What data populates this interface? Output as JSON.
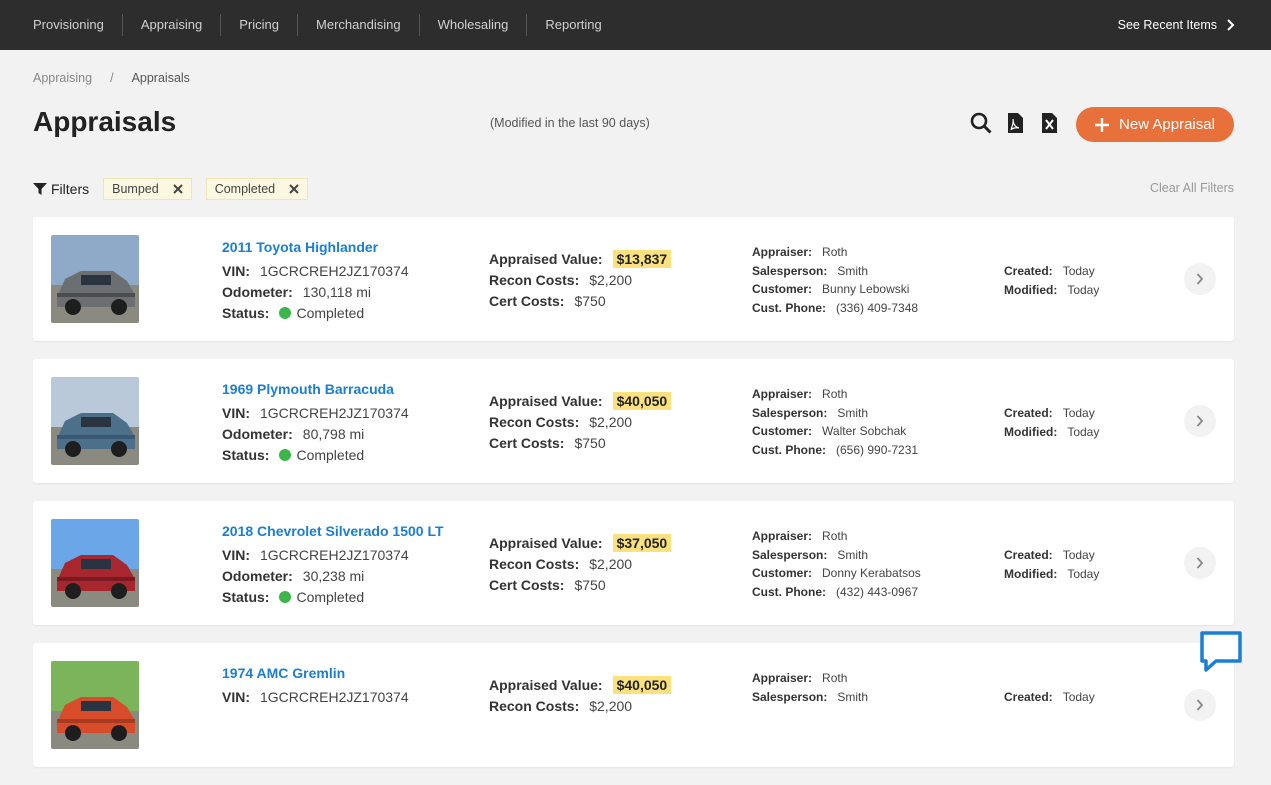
{
  "nav": {
    "items": [
      "Provisioning",
      "Appraising",
      "Pricing",
      "Merchandising",
      "Wholesaling",
      "Reporting"
    ],
    "recent": "See Recent Items"
  },
  "breadcrumb": {
    "parent": "Appraising",
    "separator": "/",
    "current": "Appraisals"
  },
  "header": {
    "title": "Appraisals",
    "subtitle": "(Modified in the last 90 days)",
    "button": "New Appraisal"
  },
  "filters": {
    "label": "Filters",
    "chips": [
      "Bumped",
      "Completed"
    ],
    "clear": "Clear All Filters"
  },
  "labels": {
    "vin": "VIN:",
    "odometer": "Odometer:",
    "status": "Status:",
    "appraised_value": "Appraised Value:",
    "recon_costs": "Recon Costs:",
    "cert_costs": "Cert Costs:",
    "appraiser": "Appraiser:",
    "salesperson": "Salesperson:",
    "customer": "Customer:",
    "phone": "Cust. Phone:",
    "created": "Created:",
    "modified": "Modified:"
  },
  "cards": [
    {
      "title": "2011 Toyota Highlander",
      "vin": "1GCRCREH2JZ170374",
      "odometer": "130,118 mi",
      "status": "Completed",
      "appraised_value": "$13,837",
      "recon_costs": "$2,200",
      "cert_costs": "$750",
      "appraiser": "Roth",
      "salesperson": "Smith",
      "customer": "Bunny Lebowski",
      "phone": "(336) 409-7348",
      "created": "Today",
      "modified": "Today"
    },
    {
      "title": "1969 Plymouth Barracuda",
      "vin": "1GCRCREH2JZ170374",
      "odometer": "80,798 mi",
      "status": "Completed",
      "appraised_value": "$40,050",
      "recon_costs": "$2,200",
      "cert_costs": "$750",
      "appraiser": "Roth",
      "salesperson": "Smith",
      "customer": "Walter Sobchak",
      "phone": "(656) 990-7231",
      "created": "Today",
      "modified": "Today"
    },
    {
      "title": "2018 Chevrolet Silverado 1500 LT",
      "vin": "1GCRCREH2JZ170374",
      "odometer": "30,238 mi",
      "status": "Completed",
      "appraised_value": "$37,050",
      "recon_costs": "$2,200",
      "cert_costs": "$750",
      "appraiser": "Roth",
      "salesperson": "Smith",
      "customer": "Donny Kerabatsos",
      "phone": "(432) 443-0967",
      "created": "Today",
      "modified": "Today"
    },
    {
      "title": "1974 AMC Gremlin",
      "vin": "1GCRCREH2JZ170374",
      "appraised_value": "$40,050",
      "recon_costs": "$2,200",
      "appraiser": "Roth",
      "salesperson": "Smith",
      "created": "Today"
    }
  ]
}
